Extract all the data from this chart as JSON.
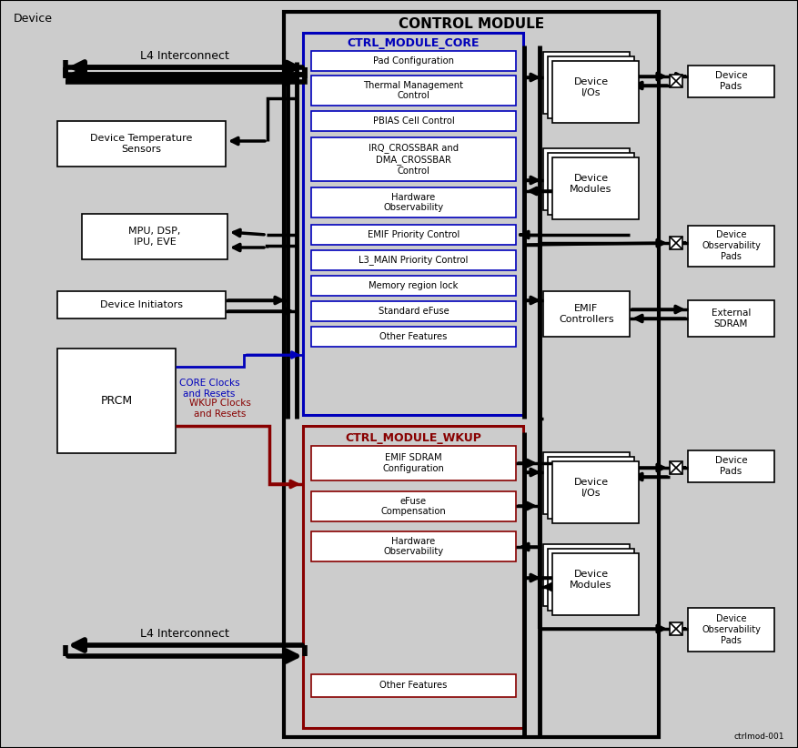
{
  "title": "CONTROL MODULE",
  "subtitle_core": "CTRL_MODULE_CORE",
  "subtitle_wkup": "CTRL_MODULE_WKUP",
  "device_label": "Device",
  "ctrlmod_ref": "ctrlmod-001",
  "bg_color": "#cccccc",
  "white": "#ffffff",
  "black": "#000000",
  "blue": "#0000bb",
  "dark_red": "#880000",
  "l4_label": "L4 Interconnect",
  "core_clocks_label": "CORE Clocks\nand Resets",
  "wkup_clocks_label": "WKUP Clocks\nand Resets",
  "core_boxes": [
    [
      "Pad Configuration",
      0
    ],
    [
      "Thermal Management\nControl",
      0
    ],
    [
      "PBIAS Cell Control",
      0
    ],
    [
      "IRQ_CROSSBAR and\nDMA_CROSSBAR\nControl",
      0
    ],
    [
      "Hardware\nObservability",
      0
    ],
    [
      "EMIF Priority Control",
      0
    ],
    [
      "L3_MAIN Priority Control",
      0
    ],
    [
      "Memory region lock",
      0
    ],
    [
      "Standard eFuse",
      0
    ],
    [
      "Other Features",
      0
    ]
  ],
  "wkup_boxes": [
    [
      "EMIF SDRAM\nConfiguration",
      1
    ],
    [
      "eFuse\nCompensation",
      1
    ],
    [
      "Hardware\nObservability",
      1
    ],
    [
      "Other Features",
      0
    ]
  ]
}
